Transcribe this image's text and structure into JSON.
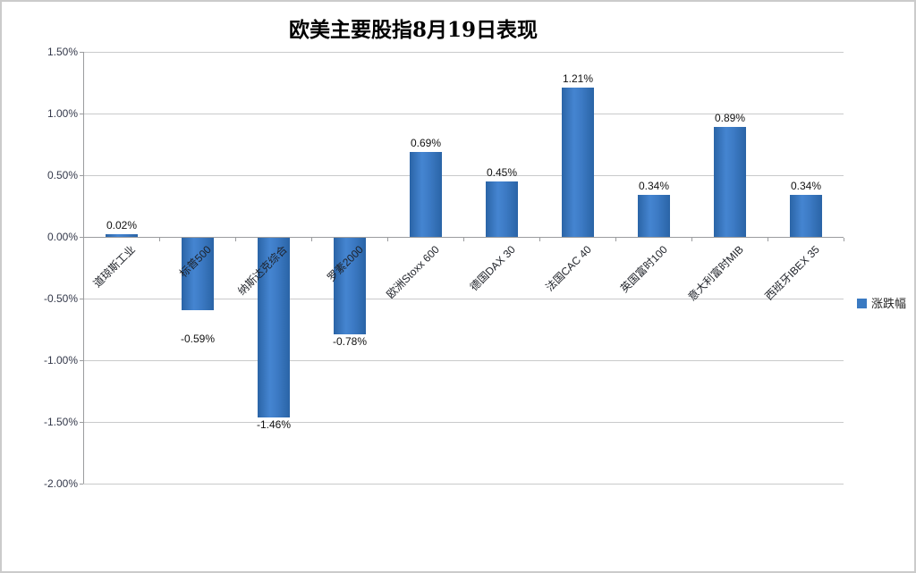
{
  "chart_data": {
    "type": "bar",
    "title": "欧美主要股指8月19日表现",
    "legend": {
      "label": "涨跌幅",
      "color": "#3a7ac2"
    },
    "legend_position": "right",
    "grid": true,
    "categories": [
      "道琼斯工业",
      "标普500",
      "纳斯达克综合",
      "罗素2000",
      "欧洲Stoxx 600",
      "德国DAX 30",
      "法国CAC 40",
      "英国富时100",
      "意大利富时MIB",
      "西班牙IBEX 35"
    ],
    "values": [
      0.02,
      -0.59,
      -1.46,
      -0.78,
      0.69,
      0.45,
      1.21,
      0.34,
      0.89,
      0.34
    ],
    "data_labels": [
      "0.02%",
      "-0.59%",
      "-1.46%",
      "-0.78%",
      "0.69%",
      "0.45%",
      "1.21%",
      "0.34%",
      "0.89%",
      "0.34%"
    ],
    "ylabel": "",
    "xlabel": "",
    "ylim": [
      -2.0,
      1.5
    ],
    "yticks": [
      1.5,
      1.0,
      0.5,
      0.0,
      -0.5,
      -1.0,
      -1.5,
      -2.0
    ],
    "ytick_labels": [
      "1.50%",
      "1.00%",
      "0.50%",
      "0.00%",
      "-0.50%",
      "-1.00%",
      "-1.50%",
      "-2.00%"
    ],
    "bar_color": "#3a7ac2"
  }
}
